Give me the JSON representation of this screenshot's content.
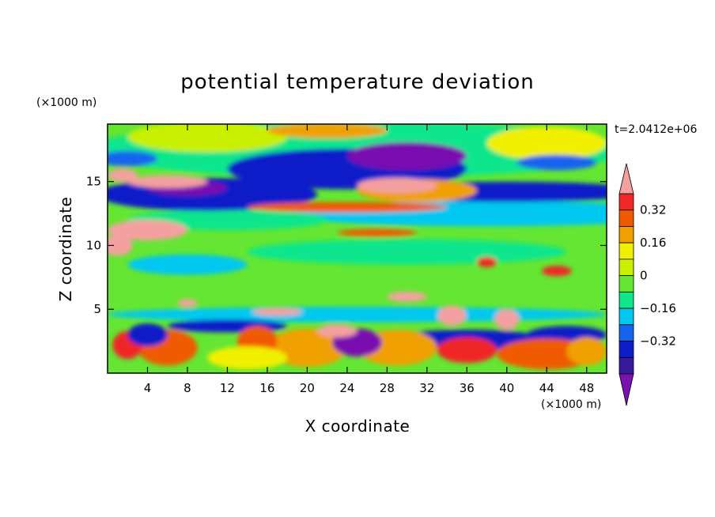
{
  "chart_data": {
    "type": "heatmap",
    "title": "potential temperature deviation",
    "xlabel": "X coordinate",
    "ylabel": "Z coordinate",
    "x_unit": "(×1000 m)",
    "y_unit": "(×1000 m)",
    "time_label": "t=2.0412e+06",
    "xlim": [
      0,
      50
    ],
    "ylim": [
      0,
      19.5
    ],
    "x_ticks": [
      4,
      8,
      12,
      16,
      20,
      24,
      28,
      32,
      36,
      40,
      44,
      48
    ],
    "y_ticks": [
      5,
      10,
      15
    ],
    "colorbar": {
      "levels": [
        -0.4,
        -0.32,
        -0.24,
        -0.16,
        -0.08,
        0,
        0.08,
        0.16,
        0.24,
        0.32,
        0.4
      ],
      "tick_labels": [
        "0.32",
        "0.16",
        "0",
        "−0.16",
        "−0.32"
      ],
      "tick_values": [
        0.32,
        0.16,
        0,
        -0.16,
        -0.32
      ],
      "colors": [
        "#7a10b0",
        "#3a1a9c",
        "#0d1ec8",
        "#1464f0",
        "#00c8f0",
        "#10e68c",
        "#64e632",
        "#c8f000",
        "#f0f000",
        "#f0a000",
        "#f05a00",
        "#f02828",
        "#f5a0a0"
      ],
      "extend": "both"
    }
  }
}
